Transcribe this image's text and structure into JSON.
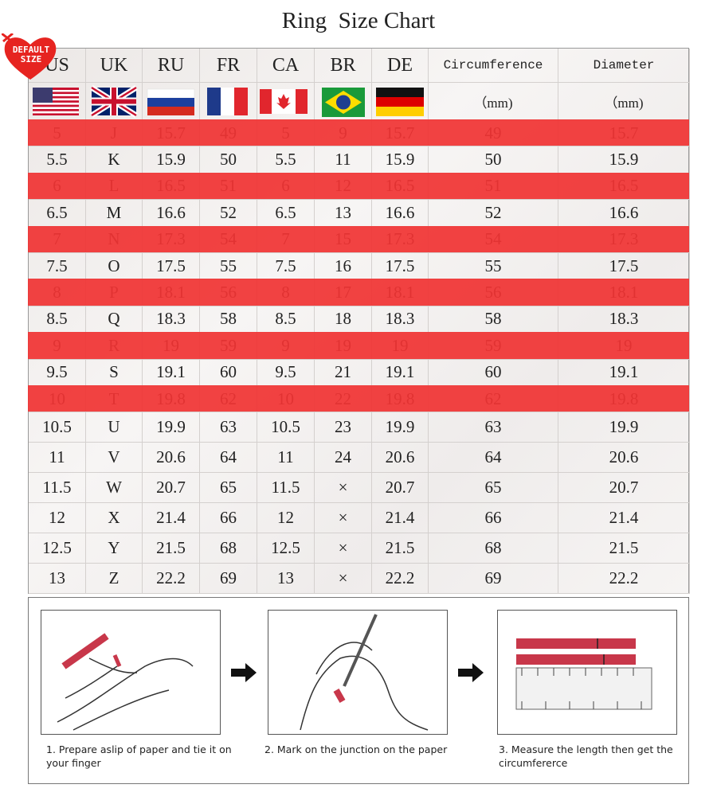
{
  "title": "Ring  Size Chart",
  "badge": "DEFAULT SIZE",
  "table": {
    "headers": [
      "US",
      "UK",
      "RU",
      "FR",
      "CA",
      "BR",
      "DE",
      "Circumference",
      "Diameter"
    ],
    "units": [
      "（mm)",
      "（mm)"
    ],
    "rows": [
      [
        "5",
        "J",
        "15.7",
        "49",
        "5",
        "9",
        "15.7",
        "49",
        "15.7"
      ],
      [
        "5.5",
        "K",
        "15.9",
        "50",
        "5.5",
        "11",
        "15.9",
        "50",
        "15.9"
      ],
      [
        "6",
        "L",
        "16.5",
        "51",
        "6",
        "12",
        "16.5",
        "51",
        "16.5"
      ],
      [
        "6.5",
        "M",
        "16.6",
        "52",
        "6.5",
        "13",
        "16.6",
        "52",
        "16.6"
      ],
      [
        "7",
        "N",
        "17.3",
        "54",
        "7",
        "15",
        "17.3",
        "54",
        "17.3"
      ],
      [
        "7.5",
        "O",
        "17.5",
        "55",
        "7.5",
        "16",
        "17.5",
        "55",
        "17.5"
      ],
      [
        "8",
        "P",
        "18.1",
        "56",
        "8",
        "17",
        "18.1",
        "56",
        "18.1"
      ],
      [
        "8.5",
        "Q",
        "18.3",
        "58",
        "8.5",
        "18",
        "18.3",
        "58",
        "18.3"
      ],
      [
        "9",
        "R",
        "19",
        "59",
        "9",
        "19",
        "19",
        "59",
        "19"
      ],
      [
        "9.5",
        "S",
        "19.1",
        "60",
        "9.5",
        "21",
        "19.1",
        "60",
        "19.1"
      ],
      [
        "10",
        "T",
        "19.8",
        "62",
        "10",
        "22",
        "19.8",
        "62",
        "19.8"
      ],
      [
        "10.5",
        "U",
        "19.9",
        "63",
        "10.5",
        "23",
        "19.9",
        "63",
        "19.9"
      ],
      [
        "11",
        "V",
        "20.6",
        "64",
        "11",
        "24",
        "20.6",
        "64",
        "20.6"
      ],
      [
        "11.5",
        "W",
        "20.7",
        "65",
        "11.5",
        "×",
        "20.7",
        "65",
        "20.7"
      ],
      [
        "12",
        "X",
        "21.4",
        "66",
        "12",
        "×",
        "21.4",
        "66",
        "21.4"
      ],
      [
        "12.5",
        "Y",
        "21.5",
        "68",
        "12.5",
        "×",
        "21.5",
        "68",
        "21.5"
      ],
      [
        "13",
        "Z",
        "22.2",
        "69",
        "13",
        "×",
        "22.2",
        "69",
        "22.2"
      ]
    ]
  },
  "steps": [
    "1. Prepare aslip of paper and tie it on your finger",
    "2. Mark on the junction on the paper",
    "3. Measure the length then get the circumfererce"
  ]
}
